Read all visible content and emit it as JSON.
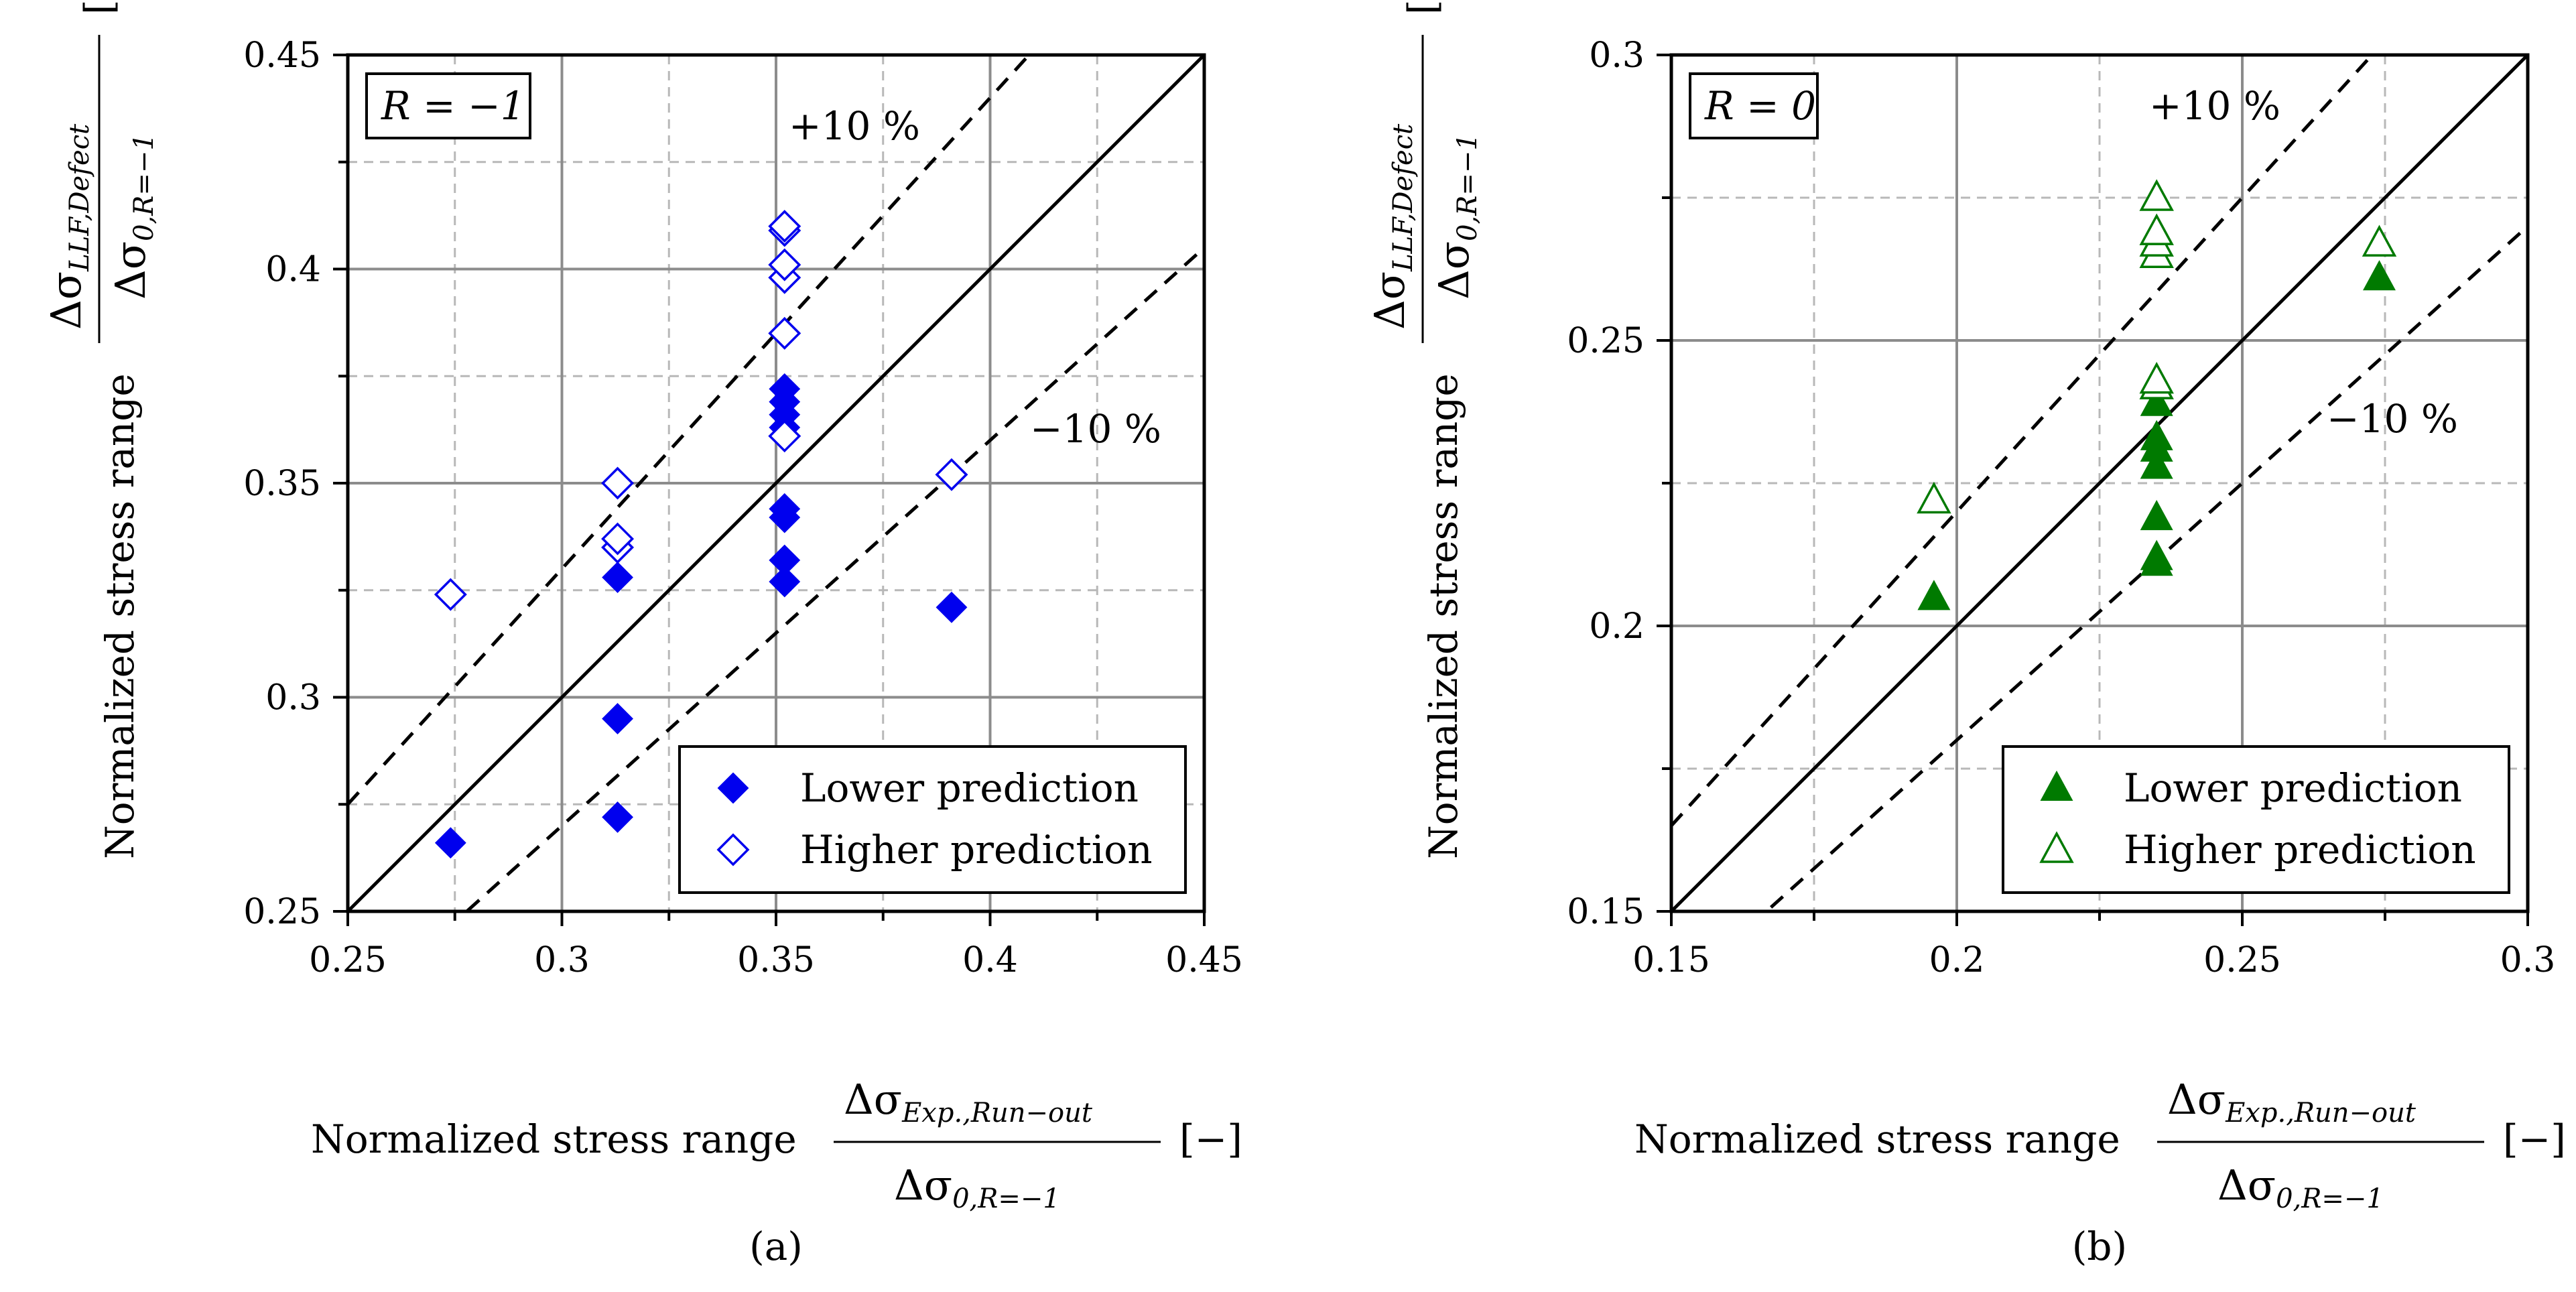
{
  "chart_data": [
    {
      "type": "scatter",
      "panel_label": "(a)",
      "condition_label": "R = −1",
      "xlim": [
        0.25,
        0.45
      ],
      "ylim": [
        0.25,
        0.45
      ],
      "xticks": [
        "0.25",
        "0.3",
        "0.35",
        "0.4",
        "0.45"
      ],
      "yticks": [
        "0.25",
        "0.3",
        "0.35",
        "0.4",
        "0.45"
      ],
      "grid": true,
      "color": "#0000ee",
      "marker": "diamond",
      "band_upper_label": "+10 %",
      "band_lower_label": "−10 %",
      "band_percent": 10,
      "legend_position": "bottom-right",
      "series": [
        {
          "name": "Lower prediction",
          "filled": true,
          "points": [
            [
              0.274,
              0.266
            ],
            [
              0.313,
              0.272
            ],
            [
              0.313,
              0.295
            ],
            [
              0.313,
              0.328
            ],
            [
              0.352,
              0.327
            ],
            [
              0.352,
              0.332
            ],
            [
              0.352,
              0.342
            ],
            [
              0.352,
              0.344
            ],
            [
              0.352,
              0.363
            ],
            [
              0.352,
              0.366
            ],
            [
              0.352,
              0.369
            ],
            [
              0.352,
              0.372
            ],
            [
              0.391,
              0.321
            ]
          ]
        },
        {
          "name": "Higher prediction",
          "filled": false,
          "points": [
            [
              0.274,
              0.324
            ],
            [
              0.313,
              0.335
            ],
            [
              0.313,
              0.337
            ],
            [
              0.313,
              0.35
            ],
            [
              0.352,
              0.361
            ],
            [
              0.352,
              0.385
            ],
            [
              0.352,
              0.398
            ],
            [
              0.352,
              0.401
            ],
            [
              0.352,
              0.409
            ],
            [
              0.352,
              0.41
            ],
            [
              0.391,
              0.352
            ]
          ]
        }
      ]
    },
    {
      "type": "scatter",
      "panel_label": "(b)",
      "condition_label": "R = 0",
      "xlim": [
        0.15,
        0.3
      ],
      "ylim": [
        0.15,
        0.3
      ],
      "xticks": [
        "0.15",
        "0.2",
        "0.25",
        "0.3"
      ],
      "yticks": [
        "0.15",
        "0.2",
        "0.25",
        "0.3"
      ],
      "grid": true,
      "color": "#007a00",
      "marker": "triangle",
      "band_upper_label": "+10 %",
      "band_lower_label": "−10 %",
      "band_percent": 10,
      "legend_position": "bottom-right",
      "series": [
        {
          "name": "Lower prediction",
          "filled": true,
          "points": [
            [
              0.196,
              0.205
            ],
            [
              0.235,
              0.211
            ],
            [
              0.235,
              0.212
            ],
            [
              0.235,
              0.219
            ],
            [
              0.235,
              0.228
            ],
            [
              0.235,
              0.231
            ],
            [
              0.235,
              0.233
            ],
            [
              0.235,
              0.239
            ],
            [
              0.274,
              0.261
            ]
          ]
        },
        {
          "name": "Higher prediction",
          "filled": false,
          "points": [
            [
              0.196,
              0.222
            ],
            [
              0.235,
              0.242
            ],
            [
              0.235,
              0.243
            ],
            [
              0.235,
              0.265
            ],
            [
              0.235,
              0.267
            ],
            [
              0.235,
              0.269
            ],
            [
              0.235,
              0.275
            ],
            [
              0.274,
              0.267
            ]
          ]
        }
      ]
    }
  ],
  "labels": {
    "axis_prefix": "Normalized stress range",
    "x_numerator": "Δσ",
    "x_numerator_sub": "Exp.,Run−out",
    "y_numerator": "Δσ",
    "y_numerator_sub": "LLF,Defect",
    "denominator": "Δσ",
    "denominator_sub": "0,R=−1",
    "unit": "[−]"
  }
}
